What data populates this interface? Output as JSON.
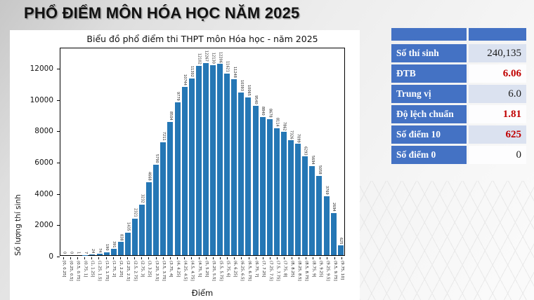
{
  "page_title": "PHỔ ĐIỂM MÔN HÓA HỌC NĂM 2025",
  "chart_data": {
    "type": "bar",
    "title": "Biểu đồ phổ điểm thi THPT môn Hóa học - năm 2025",
    "xlabel": "Điểm",
    "ylabel": "Số lượng thí sinh",
    "ylim": [
      0,
      13300
    ],
    "yticks": [
      0,
      2000,
      4000,
      6000,
      8000,
      10000,
      12000
    ],
    "bar_color": "#2577b5",
    "grid": false,
    "legend": "none",
    "categories": [
      "[0, 0.25]",
      "(0.25, 0.5]",
      "(0.5, 0.75]",
      "(0.75, 1]",
      "(1, 1.25]",
      "(1.25, 1.5]",
      "(1.5, 1.75]",
      "(1.75, 2]",
      "(2, 2.25]",
      "(2.25, 2.5]",
      "(2.5, 2.75]",
      "(2.75, 3]",
      "(3, 3.25]",
      "(3.25, 3.5]",
      "(3.5, 3.75]",
      "(3.75, 4]",
      "(4, 4.25]",
      "(4.25, 4.5]",
      "(4.5, 4.75]",
      "(4.75, 5]",
      "(5, 5.25]",
      "(5.25, 5.5]",
      "(5.5, 5.75]",
      "(5.75, 6]",
      "(6, 6.25]",
      "(6.25, 6.5]",
      "(6.5, 6.75]",
      "(6.75, 7]",
      "(7, 7.25]",
      "(7.25, 7.5]",
      "(7.5, 7.75]",
      "(7.75, 8]",
      "(8, 8.25]",
      "(8.25, 8.5]",
      "(8.5, 8.75]",
      "(8.75, 9]",
      "(9, 9.25]",
      "(9.25, 9.5]",
      "(9.5, 9.75]",
      "(9.75, 10]"
    ],
    "values": [
      0,
      0,
      1,
      7,
      24,
      74,
      190,
      391,
      838,
      1435,
      2321,
      3232,
      4668,
      5790,
      7211,
      8504,
      9779,
      10744,
      11302,
      12102,
      12267,
      12130,
      12206,
      11621,
      11248,
      10393,
      10065,
      9540,
      8840,
      8678,
      8114,
      7862,
      7326,
      7099,
      6293,
      5694,
      5058,
      3769,
      2694,
      625
    ]
  },
  "stats_table": {
    "label_bg": "#4472C4",
    "alt_value_bg": "#dbe2f0",
    "plain_value_bg": "#fdfdfe",
    "red": "#c00000",
    "dark": "#1a1a1a",
    "rows": [
      {
        "label": "Số thí sinh",
        "value": "240,135",
        "value_color": "dark"
      },
      {
        "label": "ĐTB",
        "value": "6.06",
        "value_color": "red"
      },
      {
        "label": "Trung vị",
        "value": "6.0",
        "value_color": "dark"
      },
      {
        "label": "Độ lệch chuẩn",
        "value": "1.81",
        "value_color": "red"
      },
      {
        "label": "Số điểm 10",
        "value": "625",
        "value_color": "red"
      },
      {
        "label": "Số điểm 0",
        "value": "0",
        "value_color": "dark"
      }
    ]
  }
}
